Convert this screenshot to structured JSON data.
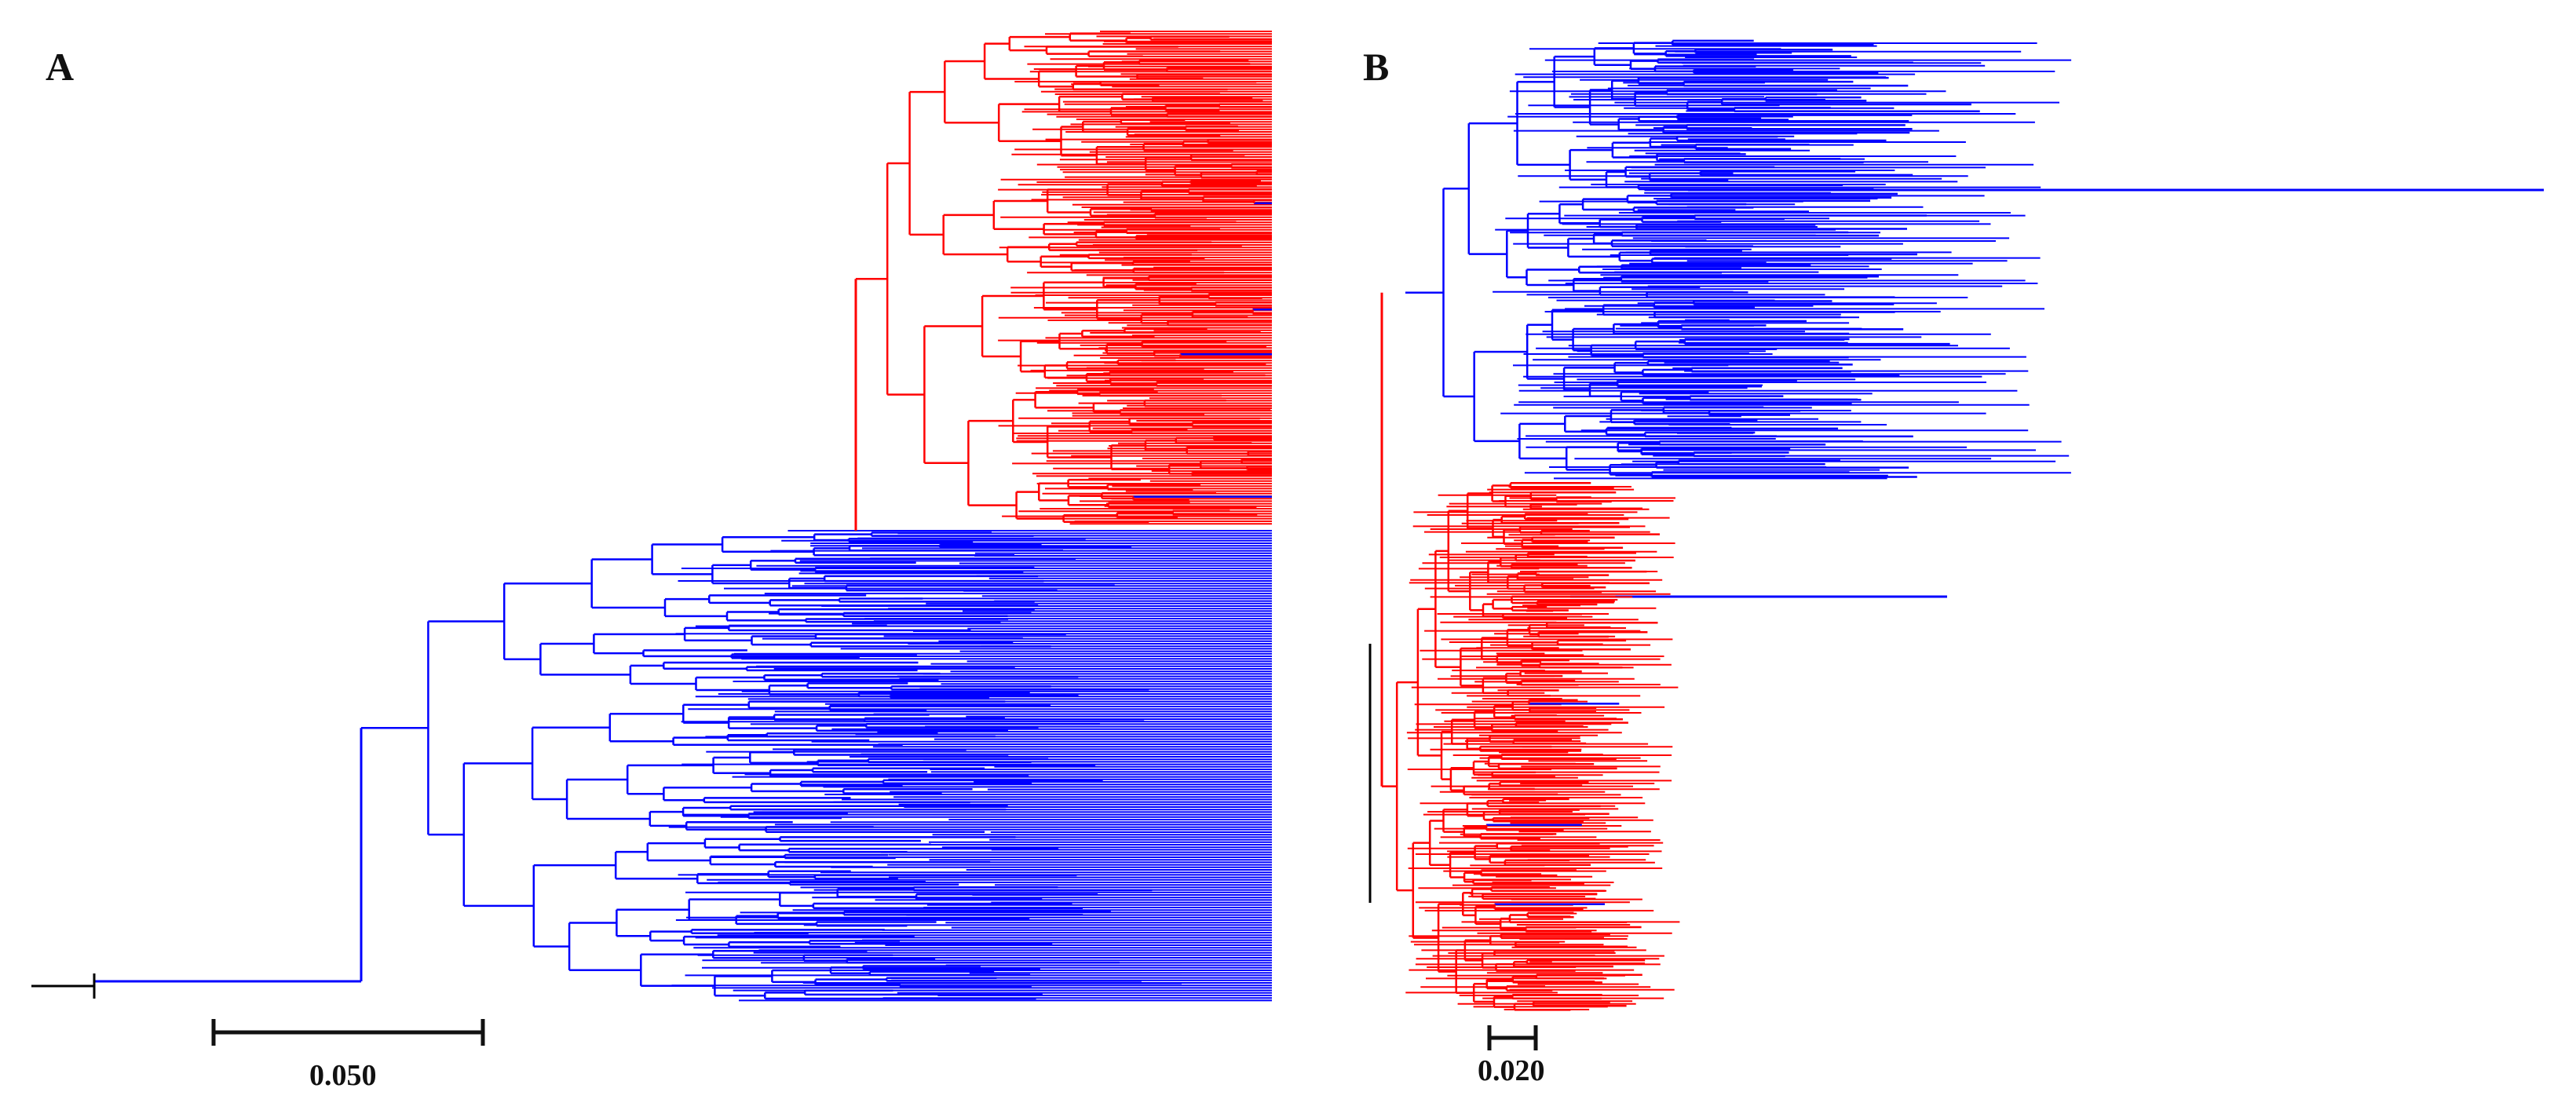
{
  "figure": {
    "panels": [
      {
        "id": "panel-a",
        "label": "A",
        "scale_bar_label": "0.050",
        "clades": [
          {
            "name": "red-clade",
            "color": "#ff0000"
          },
          {
            "name": "blue-clade",
            "color": "#0000ff"
          }
        ]
      },
      {
        "id": "panel-b",
        "label": "B",
        "scale_bar_label": "0.020",
        "clades": [
          {
            "name": "blue-clade",
            "color": "#0000ff"
          },
          {
            "name": "red-clade",
            "color": "#ff0000"
          }
        ]
      }
    ],
    "colors": {
      "red": "#ff0000",
      "blue": "#0000ff",
      "root": "#000000",
      "scale": "#111111"
    }
  }
}
